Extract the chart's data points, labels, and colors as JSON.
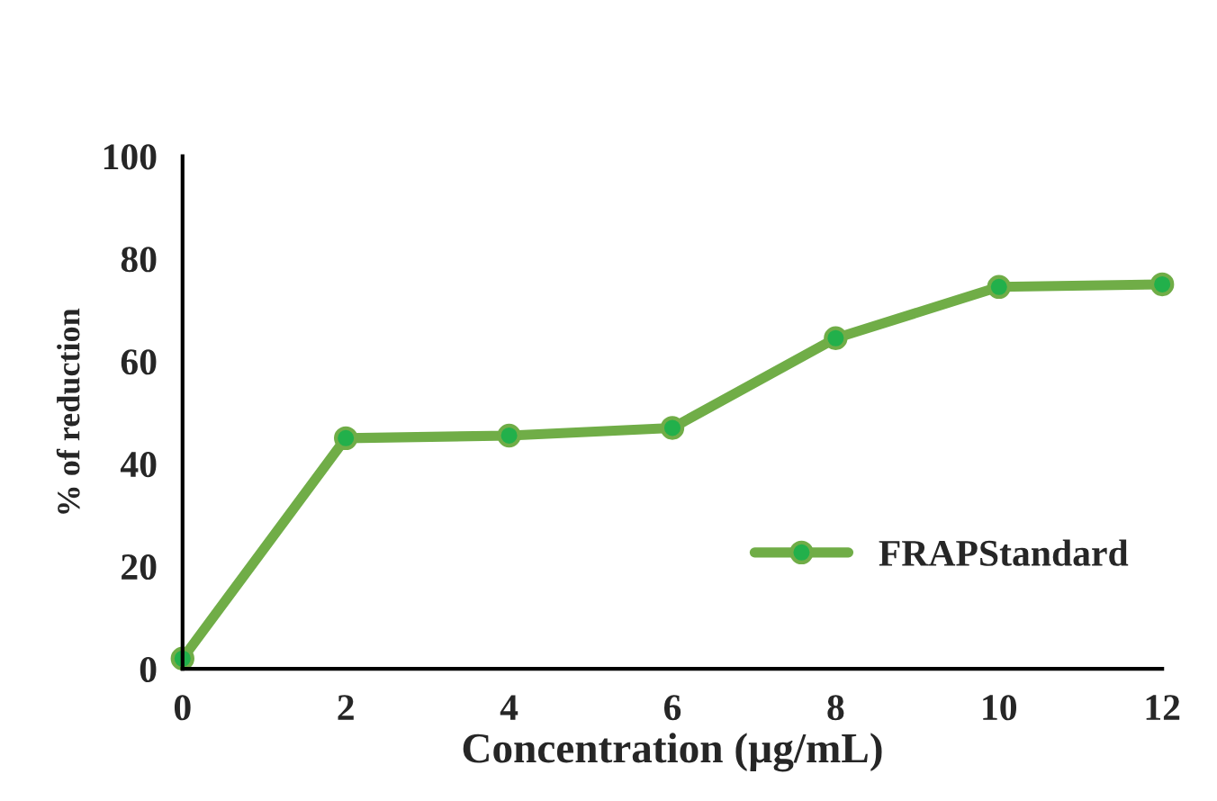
{
  "chart_data": {
    "type": "line",
    "xlabel": "Concentration (µg/mL)",
    "ylabel": "% of reduction",
    "x": [
      0,
      2,
      4,
      6,
      8,
      10,
      12
    ],
    "series": [
      {
        "name": "FRAPStandard",
        "color": "#70ad47",
        "values": [
          2,
          45,
          45.5,
          47,
          64.5,
          74.5,
          75
        ]
      }
    ],
    "xlim": [
      0,
      12
    ],
    "xticks": [
      0,
      2,
      4,
      6,
      8,
      10,
      12
    ],
    "ylim": [
      0,
      100
    ],
    "yticks": [
      0,
      20,
      40,
      60,
      80,
      100
    ],
    "grid": false,
    "legend": "lower right",
    "marker": "circle",
    "line_style": "solid"
  }
}
